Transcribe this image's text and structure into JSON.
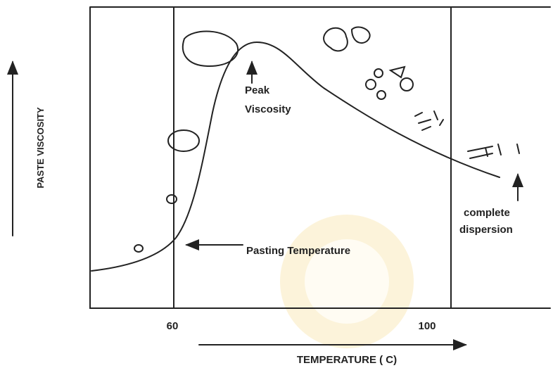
{
  "axes": {
    "y_label": "PASTE VISCOSITY",
    "x_label": "TEMPERATURE ( C)",
    "x_ticks": [
      "60",
      "100"
    ]
  },
  "annotations": {
    "peak": [
      "Peak",
      "Viscosity"
    ],
    "pasting": "Pasting Temperature",
    "dispersion": [
      "complete",
      "dispersion"
    ]
  }
}
